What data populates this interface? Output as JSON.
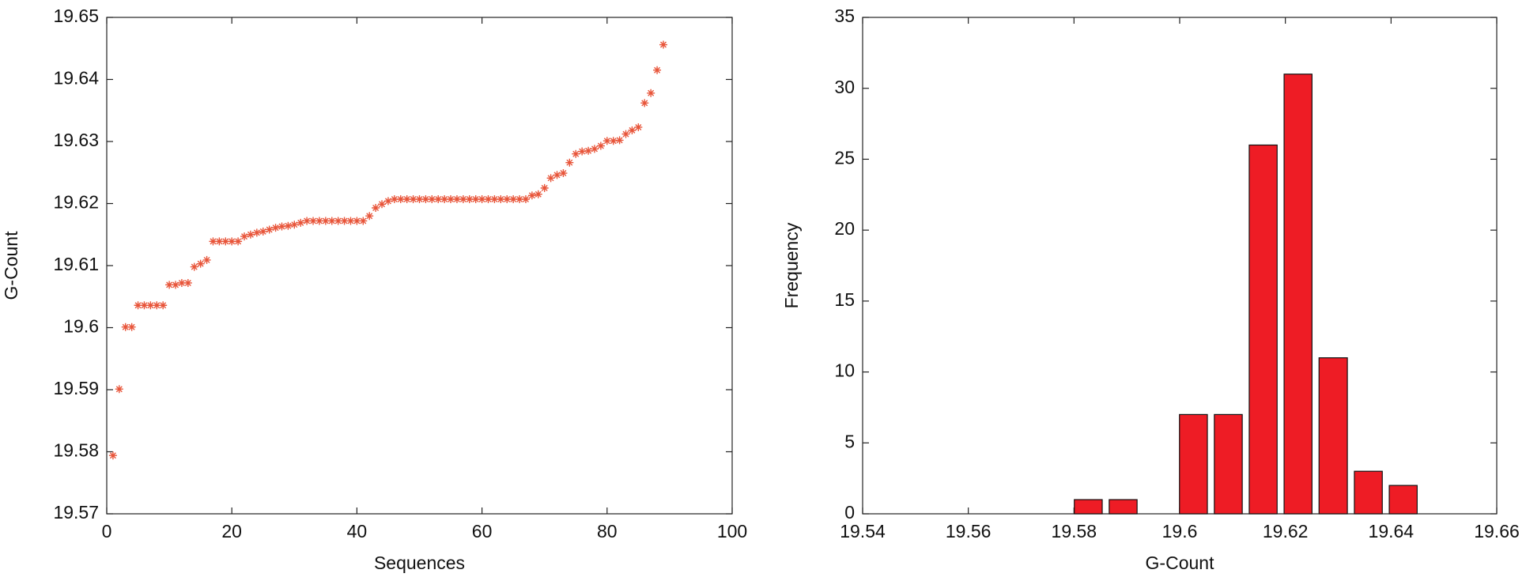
{
  "chart_data": [
    {
      "type": "scatter",
      "xlabel": "Sequences",
      "ylabel": "G-Count",
      "color": "#e8553a",
      "x": [
        1,
        2,
        3,
        4,
        5,
        6,
        7,
        8,
        9,
        10,
        11,
        12,
        13,
        14,
        15,
        16,
        17,
        18,
        19,
        20,
        21,
        22,
        23,
        24,
        25,
        26,
        27,
        28,
        29,
        30,
        31,
        32,
        33,
        34,
        35,
        36,
        37,
        38,
        39,
        40,
        41,
        42,
        43,
        44,
        45,
        46,
        47,
        48,
        49,
        50,
        51,
        52,
        53,
        54,
        55,
        56,
        57,
        58,
        59,
        60,
        61,
        62,
        63,
        64,
        65,
        66,
        67,
        68,
        69,
        70,
        71,
        72,
        73,
        74,
        75,
        76,
        77,
        78,
        79,
        80,
        81,
        82,
        83,
        84,
        85,
        86,
        87,
        88,
        89
      ],
      "values": [
        19.5794,
        19.5901,
        19.6001,
        19.6001,
        19.6036,
        19.6036,
        19.6036,
        19.6036,
        19.6036,
        19.6069,
        19.6069,
        19.6072,
        19.6072,
        19.6098,
        19.6103,
        19.6109,
        19.6139,
        19.6139,
        19.6139,
        19.6139,
        19.6139,
        19.6147,
        19.615,
        19.6153,
        19.6155,
        19.6158,
        19.6161,
        19.6163,
        19.6164,
        19.6166,
        19.6169,
        19.6172,
        19.6172,
        19.6172,
        19.6172,
        19.6172,
        19.6172,
        19.6172,
        19.6172,
        19.6172,
        19.6172,
        19.618,
        19.6193,
        19.6199,
        19.6204,
        19.6207,
        19.6207,
        19.6207,
        19.6207,
        19.6207,
        19.6207,
        19.6207,
        19.6207,
        19.6207,
        19.6207,
        19.6207,
        19.6207,
        19.6207,
        19.6207,
        19.6207,
        19.6207,
        19.6207,
        19.6207,
        19.6207,
        19.6207,
        19.6207,
        19.6207,
        19.6213,
        19.6215,
        19.6225,
        19.6241,
        19.6246,
        19.6249,
        19.6266,
        19.628,
        19.6284,
        19.6285,
        19.6288,
        19.6293,
        19.6301,
        19.6301,
        19.6302,
        19.6312,
        19.6318,
        19.6323,
        19.6362,
        19.6378,
        19.6415,
        19.6456
      ],
      "xlim": [
        0,
        100
      ],
      "xticks": [
        0,
        20,
        40,
        60,
        80,
        100
      ],
      "ylim": [
        19.57,
        19.65
      ],
      "yticks": [
        19.57,
        19.58,
        19.59,
        19.6,
        19.61,
        19.62,
        19.63,
        19.64,
        19.65
      ]
    },
    {
      "type": "histogram",
      "xlabel": "G-Count",
      "ylabel": "Frequency",
      "color": "#ee1c25",
      "bins": [
        19.5794,
        19.586,
        19.5926,
        19.5993,
        19.6059,
        19.6125,
        19.6191,
        19.6257,
        19.6324,
        19.639,
        19.6456
      ],
      "values": [
        1,
        1,
        0,
        7,
        7,
        26,
        31,
        11,
        3,
        2
      ],
      "xlim": [
        19.54,
        19.66
      ],
      "xticks": [
        19.54,
        19.56,
        19.58,
        19.6,
        19.62,
        19.64,
        19.66
      ],
      "ylim": [
        0,
        35
      ],
      "yticks": [
        0,
        5,
        10,
        15,
        20,
        25,
        30,
        35
      ]
    }
  ]
}
